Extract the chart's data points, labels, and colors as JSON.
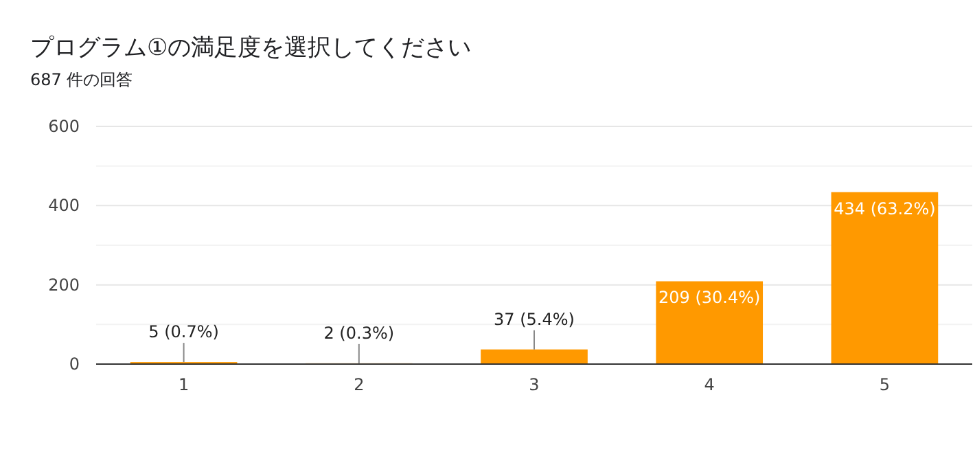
{
  "chart_data": {
    "type": "bar",
    "title": "プログラム①の満足度を選択してください",
    "subtitle": "687 件の回答",
    "categories": [
      "1",
      "2",
      "3",
      "4",
      "5"
    ],
    "values": [
      5,
      2,
      37,
      209,
      434
    ],
    "value_labels": [
      "5 (0.7%)",
      "2 (0.3%)",
      "37 (5.4%)",
      "209 (30.4%)",
      "434 (63.2%)"
    ],
    "color": "#ff9900",
    "ylim": [
      0,
      600
    ],
    "yticks": [
      0,
      {
        "value": 100,
        "label": null
      },
      200,
      {
        "value": 300,
        "label": null
      },
      400,
      {
        "value": 500,
        "label": null
      },
      600
    ],
    "grid": "y"
  }
}
